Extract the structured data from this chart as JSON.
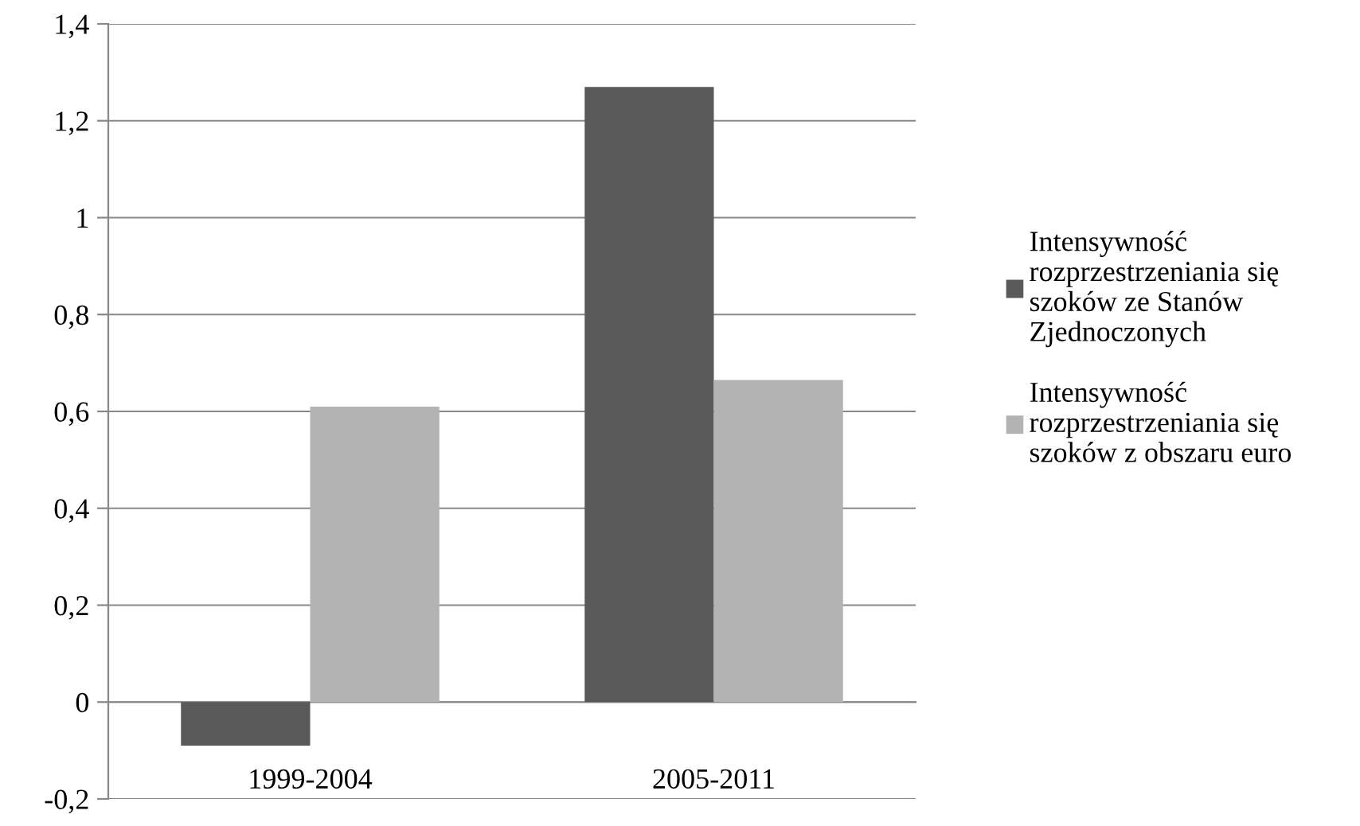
{
  "chart_data": {
    "type": "bar",
    "categories": [
      "1999-2004",
      "2005-2011"
    ],
    "series": [
      {
        "name": "Intensywność\nrozprzestrzeniania się\nszoków ze Stanów\nZjednoczonych",
        "color": "#595959",
        "values": [
          -0.09,
          1.27
        ]
      },
      {
        "name": "Intensywność\nrozprzestrzeniania się\nszoków z obszaru euro",
        "color": "#b3b3b3",
        "values": [
          0.61,
          0.665
        ]
      }
    ],
    "ylim": [
      -0.2,
      1.4
    ],
    "yticks": [
      {
        "value": -0.2,
        "label": "-0,2"
      },
      {
        "value": 0,
        "label": "0"
      },
      {
        "value": 0.2,
        "label": "0,2"
      },
      {
        "value": 0.4,
        "label": "0,4"
      },
      {
        "value": 0.6,
        "label": "0,6"
      },
      {
        "value": 0.8,
        "label": "0,8"
      },
      {
        "value": 1,
        "label": "1"
      },
      {
        "value": 1.2,
        "label": "1,2"
      },
      {
        "value": 1.4,
        "label": "1,4"
      }
    ],
    "grid": "y",
    "legend": "right"
  }
}
